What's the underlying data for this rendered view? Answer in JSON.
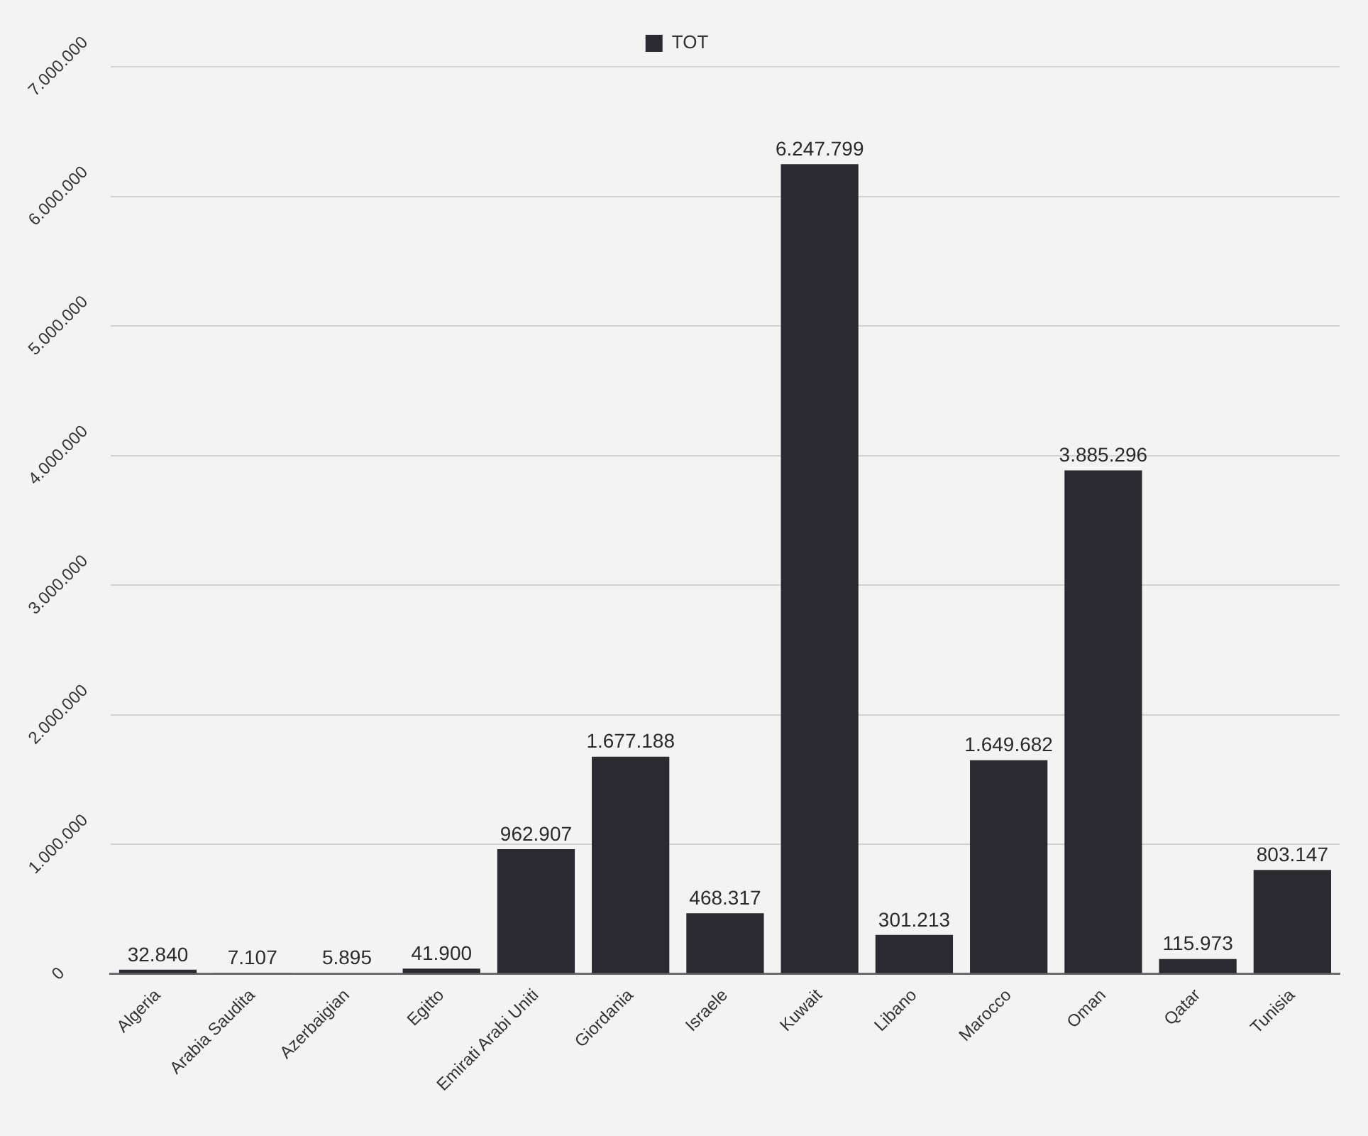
{
  "chart_data": {
    "type": "bar",
    "categories": [
      "Algeria",
      "Arabia Saudita",
      "Azerbaigian",
      "Egitto",
      "Emirati Arabi Uniti",
      "Giordania",
      "Israele",
      "Kuwait",
      "Libano",
      "Marocco",
      "Oman",
      "Qatar",
      "Tunisia"
    ],
    "series": [
      {
        "name": "TOT",
        "color": "#2b2a30",
        "values": [
          32840,
          7107,
          5895,
          41900,
          962907,
          1677188,
          468317,
          6247799,
          301213,
          1649682,
          3885296,
          115973,
          803147
        ],
        "value_labels": [
          "32.840",
          "7.107",
          "5.895",
          "41.900",
          "962.907",
          "1.677.188",
          "468.317",
          "6.247.799",
          "301.213",
          "1.649.682",
          "3.885.296",
          "115.973",
          "803.147"
        ]
      }
    ],
    "ylim": [
      0,
      7000000
    ],
    "yticks": [
      0,
      {
        "value": 1000000,
        "label": "1.000.000"
      },
      {
        "value": 2000000,
        "label": "2.000.000"
      },
      {
        "value": 3000000,
        "label": "3.000.000"
      },
      {
        "value": 4000000,
        "label": "4.000.000"
      },
      {
        "value": 5000000,
        "label": "5.000.000"
      },
      {
        "value": 6000000,
        "label": "6.000.000"
      },
      {
        "value": 7000000,
        "label": "7.000.000"
      }
    ],
    "grid": "y",
    "legend": "top"
  }
}
